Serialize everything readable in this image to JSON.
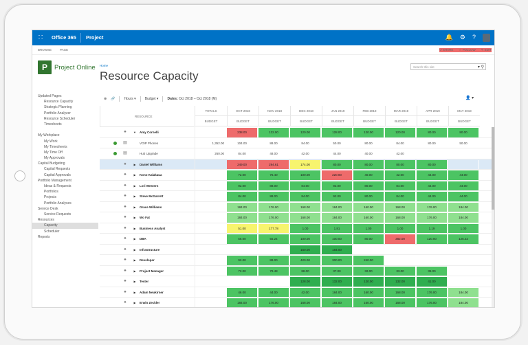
{
  "topbar": {
    "brand": "Office 365",
    "app": "Project",
    "icons": [
      "bell-icon",
      "gear-icon",
      "help-icon",
      "avatar"
    ]
  },
  "subbar": {
    "left": [
      "BROWSE",
      "PAGE"
    ],
    "right": [
      "SHARE",
      "FOLLOW",
      "EDIT"
    ]
  },
  "logo": {
    "letter": "P",
    "text": "Project Online"
  },
  "breadcrumb": "Home",
  "page_title": "Resource Capacity",
  "search": {
    "placeholder": "Search this site"
  },
  "left_nav": [
    {
      "label": "Updated Pages",
      "sub": false
    },
    {
      "label": "Resource Capacity",
      "sub": true
    },
    {
      "label": "Strategic Planning",
      "sub": true
    },
    {
      "label": "Portfolio Analyzer",
      "sub": true
    },
    {
      "label": "Resource Scheduler",
      "sub": true
    },
    {
      "label": "Timesheets",
      "sub": true
    },
    {
      "label": "",
      "sub": false
    },
    {
      "label": "My Workplace",
      "sub": false
    },
    {
      "label": "My Work",
      "sub": true
    },
    {
      "label": "My Timesheets",
      "sub": true
    },
    {
      "label": "My Time Off",
      "sub": true
    },
    {
      "label": "My Approvals",
      "sub": true
    },
    {
      "label": "Capital Budgeting",
      "sub": false
    },
    {
      "label": "Capital Requests",
      "sub": true
    },
    {
      "label": "Capital Approvals",
      "sub": true
    },
    {
      "label": "Portfolio Management",
      "sub": false
    },
    {
      "label": "Ideas & Requests",
      "sub": true
    },
    {
      "label": "Portfolios",
      "sub": true
    },
    {
      "label": "Projects",
      "sub": true
    },
    {
      "label": "Portfolio Analyses",
      "sub": true
    },
    {
      "label": "Service Desk",
      "sub": false
    },
    {
      "label": "Service Requests",
      "sub": true
    },
    {
      "label": "Resources",
      "sub": false
    },
    {
      "label": "Capacity",
      "sub": true,
      "selected": true
    },
    {
      "label": "Scheduler",
      "sub": true
    },
    {
      "label": "Reports",
      "sub": false
    }
  ],
  "toolbar": {
    "hours": "Hours",
    "budget": "Budget",
    "dates_label": "Dates:",
    "dates_value": "Oct 2018 – Oct 2018 (M)"
  },
  "grid": {
    "col_resource": "RESOURCE",
    "col_totals": "TOTALS",
    "col_budget": "BUDGET",
    "months": [
      "OCT 2018",
      "NOV 2018",
      "DEC 2018",
      "JAN 2019",
      "FEB 2019",
      "MAR 2019",
      "APR 2019",
      "MAY 2019"
    ],
    "rows": [
      {
        "icon": "person",
        "dot": false,
        "name": "Amy Cornelli",
        "bold": true,
        "total": "",
        "cells": [
          [
            "238.00",
            "r"
          ],
          [
            "132.00",
            "g"
          ],
          [
            "120.00",
            "g"
          ],
          [
            "128.00",
            "g"
          ],
          [
            "120.00",
            "g"
          ],
          [
            "120.00",
            "g"
          ],
          [
            "80.00",
            "g"
          ],
          [
            "80.00",
            "g"
          ]
        ]
      },
      {
        "icon": "card",
        "dot": true,
        "name": "VOIP Phones",
        "bold": false,
        "total": "1,352.00",
        "cells": [
          [
            "104.00",
            "w"
          ],
          [
            "88.00",
            "w"
          ],
          [
            "84.00",
            "w"
          ],
          [
            "50.00",
            "w"
          ],
          [
            "80.00",
            "w"
          ],
          [
            "84.00",
            "w"
          ],
          [
            "80.00",
            "w"
          ],
          [
            "50.00",
            "w"
          ]
        ]
      },
      {
        "icon": "card",
        "dot": true,
        "name": "Hub Upgrade",
        "bold": false,
        "total": "260.00",
        "cells": [
          [
            "84.00",
            "w"
          ],
          [
            "48.00",
            "w"
          ],
          [
            "42.00",
            "w"
          ],
          [
            "44.00",
            "w"
          ],
          [
            "40.00",
            "w"
          ],
          [
            "42.00",
            "w"
          ],
          [
            "",
            ""
          ],
          [
            "",
            ""
          ]
        ]
      },
      {
        "icon": "person",
        "dot": false,
        "name": "Daniel Williams",
        "bold": true,
        "total": "",
        "selected": true,
        "cells": [
          [
            "249.00",
            "r"
          ],
          [
            "294.61",
            "r"
          ],
          [
            "174.00",
            "y"
          ],
          [
            "80.00",
            "g"
          ],
          [
            "80.00",
            "g"
          ],
          [
            "80.00",
            "g"
          ],
          [
            "80.00",
            "g"
          ],
          [
            "",
            ""
          ]
        ]
      },
      {
        "icon": "person",
        "dot": false,
        "name": "Kono Kalakaua",
        "bold": true,
        "total": "",
        "cells": [
          [
            "72.00",
            "g"
          ],
          [
            "75.40",
            "g"
          ],
          [
            "100.00",
            "g"
          ],
          [
            "220.00",
            "r"
          ],
          [
            "40.00",
            "g"
          ],
          [
            "42.00",
            "g"
          ],
          [
            "44.00",
            "g"
          ],
          [
            "44.00",
            "g"
          ]
        ]
      },
      {
        "icon": "person",
        "dot": false,
        "name": "Lori Western",
        "bold": true,
        "total": "",
        "cells": [
          [
            "92.00",
            "g"
          ],
          [
            "88.00",
            "g"
          ],
          [
            "84.00",
            "g"
          ],
          [
            "92.00",
            "g"
          ],
          [
            "80.00",
            "g"
          ],
          [
            "84.00",
            "g"
          ],
          [
            "44.00",
            "g"
          ],
          [
            "44.00",
            "g"
          ]
        ]
      },
      {
        "icon": "person",
        "dot": false,
        "name": "Steve McGarrett",
        "bold": true,
        "total": "",
        "cells": [
          [
            "84.00",
            "g"
          ],
          [
            "88.00",
            "g"
          ],
          [
            "84.00",
            "g"
          ],
          [
            "92.00",
            "g"
          ],
          [
            "80.00",
            "g"
          ],
          [
            "84.00",
            "g"
          ],
          [
            "44.00",
            "g"
          ],
          [
            "44.00",
            "g"
          ]
        ]
      },
      {
        "icon": "person",
        "dot": false,
        "name": "Grace Williams",
        "bold": true,
        "total": "",
        "cells": [
          [
            "184.00",
            "lg"
          ],
          [
            "176.00",
            "lg"
          ],
          [
            "168.00",
            "lg"
          ],
          [
            "184.00",
            "lg"
          ],
          [
            "160.00",
            "lg"
          ],
          [
            "168.00",
            "lg"
          ],
          [
            "176.00",
            "lg"
          ],
          [
            "184.00",
            "lg"
          ]
        ]
      },
      {
        "icon": "person",
        "dot": false,
        "name": "Wo Fat",
        "bold": true,
        "total": "",
        "cells": [
          [
            "184.00",
            "lg"
          ],
          [
            "176.00",
            "lg"
          ],
          [
            "168.00",
            "lg"
          ],
          [
            "184.00",
            "lg"
          ],
          [
            "160.00",
            "lg"
          ],
          [
            "168.00",
            "lg"
          ],
          [
            "176.00",
            "lg"
          ],
          [
            "184.00",
            "lg"
          ]
        ]
      },
      {
        "icon": "group",
        "dot": false,
        "name": "Business Analyst",
        "bold": true,
        "total": "",
        "cells": [
          [
            "51.00",
            "y"
          ],
          [
            "177.78",
            "y"
          ],
          [
            "1.00",
            "g"
          ],
          [
            "1.81",
            "g"
          ],
          [
            "1.00",
            "g"
          ],
          [
            "1.00",
            "g"
          ],
          [
            "1.19",
            "g"
          ],
          [
            "1.00",
            "g"
          ]
        ]
      },
      {
        "icon": "group",
        "dot": false,
        "name": "DBA",
        "bold": true,
        "total": "",
        "cells": [
          [
            "56.00",
            "g"
          ],
          [
            "55.24",
            "g"
          ],
          [
            "100.00",
            "g"
          ],
          [
            "100.00",
            "g"
          ],
          [
            "80.00",
            "g"
          ],
          [
            "382.00",
            "r"
          ],
          [
            "120.00",
            "g"
          ],
          [
            "125.22",
            "g"
          ]
        ]
      },
      {
        "icon": "group",
        "dot": false,
        "name": "Infrastructure",
        "bold": true,
        "total": "",
        "cells": [
          [
            "",
            ""
          ],
          [
            "",
            ""
          ],
          [
            "160.00",
            "dg"
          ],
          [
            "184.00",
            "dg"
          ],
          [
            "",
            ""
          ],
          [
            "",
            ""
          ],
          [
            "",
            ""
          ],
          [
            "",
            ""
          ]
        ]
      },
      {
        "icon": "group",
        "dot": false,
        "name": "Developer",
        "bold": true,
        "total": "",
        "cells": [
          [
            "92.00",
            "g"
          ],
          [
            "88.00",
            "g"
          ],
          [
            "420.00",
            "g"
          ],
          [
            "300.00",
            "g"
          ],
          [
            "240.00",
            "g"
          ],
          [
            "",
            ""
          ],
          [
            "",
            ""
          ],
          [
            "",
            ""
          ]
        ]
      },
      {
        "icon": "group",
        "dot": false,
        "name": "Project Manager",
        "bold": true,
        "total": "",
        "cells": [
          [
            "72.00",
            "g"
          ],
          [
            "79.48",
            "g"
          ],
          [
            "88.00",
            "g"
          ],
          [
            "37.00",
            "g"
          ],
          [
            "32.00",
            "g"
          ],
          [
            "33.00",
            "g"
          ],
          [
            "35.00",
            "g"
          ],
          [
            "",
            ""
          ]
        ]
      },
      {
        "icon": "group",
        "dot": false,
        "name": "Tester",
        "bold": true,
        "total": "",
        "cells": [
          [
            "",
            ""
          ],
          [
            "",
            ""
          ],
          [
            "128.00",
            "dg"
          ],
          [
            "132.00",
            "dg"
          ],
          [
            "120.00",
            "dg"
          ],
          [
            "132.00",
            "dg"
          ],
          [
            "41.00",
            "dg"
          ],
          [
            "",
            ""
          ]
        ]
      },
      {
        "icon": "person",
        "dot": false,
        "name": "Adam Neukirner",
        "bold": true,
        "total": "",
        "cells": [
          [
            "46.00",
            "g"
          ],
          [
            "44.00",
            "g"
          ],
          [
            "42.00",
            "g"
          ],
          [
            "184.00",
            "g"
          ],
          [
            "160.00",
            "g"
          ],
          [
            "168.00",
            "g"
          ],
          [
            "176.00",
            "g"
          ],
          [
            "184.00",
            "lg"
          ]
        ]
      },
      {
        "icon": "person",
        "dot": false,
        "name": "Erwin Zeckler",
        "bold": true,
        "total": "",
        "cells": [
          [
            "184.00",
            "g"
          ],
          [
            "176.00",
            "g"
          ],
          [
            "168.00",
            "g"
          ],
          [
            "184.00",
            "g"
          ],
          [
            "160.00",
            "g"
          ],
          [
            "168.00",
            "g"
          ],
          [
            "176.00",
            "g"
          ],
          [
            "184.00",
            "lg"
          ]
        ]
      }
    ]
  }
}
